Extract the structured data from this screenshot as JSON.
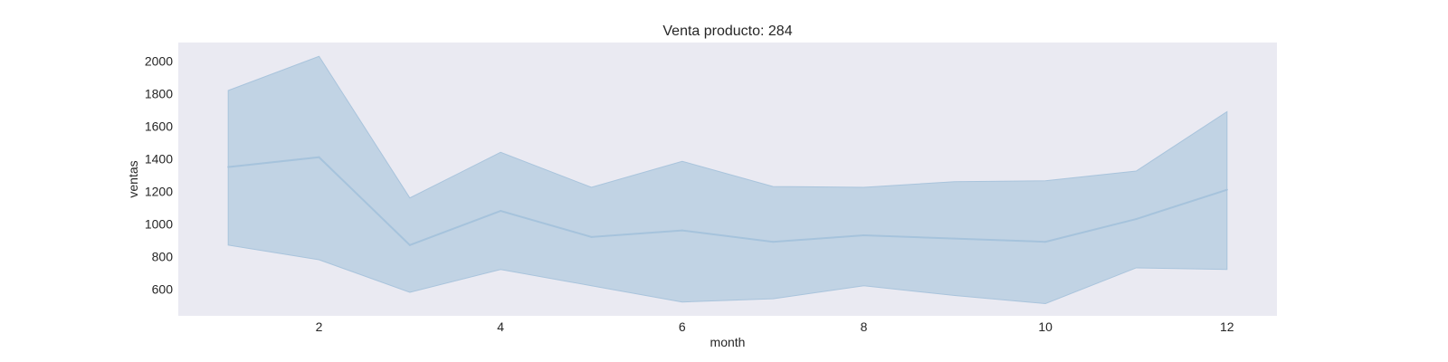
{
  "chart_data": {
    "type": "line",
    "title": "Venta producto: 284",
    "xlabel": "month",
    "ylabel": "ventas",
    "x": [
      1,
      2,
      3,
      4,
      5,
      6,
      7,
      8,
      9,
      10,
      11,
      12
    ],
    "series": [
      {
        "values": [
          1350,
          1410,
          870,
          1080,
          920,
          960,
          890,
          930,
          910,
          890,
          1030,
          1210
        ],
        "lower": [
          870,
          780,
          580,
          720,
          620,
          520,
          540,
          620,
          560,
          510,
          730,
          720
        ],
        "upper": [
          1820,
          2030,
          1160,
          1440,
          1225,
          1385,
          1230,
          1225,
          1260,
          1265,
          1325,
          1690
        ]
      }
    ],
    "xticks": [
      2,
      4,
      6,
      8,
      10,
      12
    ],
    "yticks": [
      600,
      800,
      1000,
      1200,
      1400,
      1600,
      1800,
      2000
    ],
    "xlim": [
      0.45,
      12.55
    ],
    "ylim": [
      435,
      2115
    ],
    "grid": false,
    "colors": {
      "background": "#eaeaf2",
      "line": "#a6c3dc",
      "band": "#c1d3e4",
      "band_edge": "#a9c4dc"
    }
  }
}
